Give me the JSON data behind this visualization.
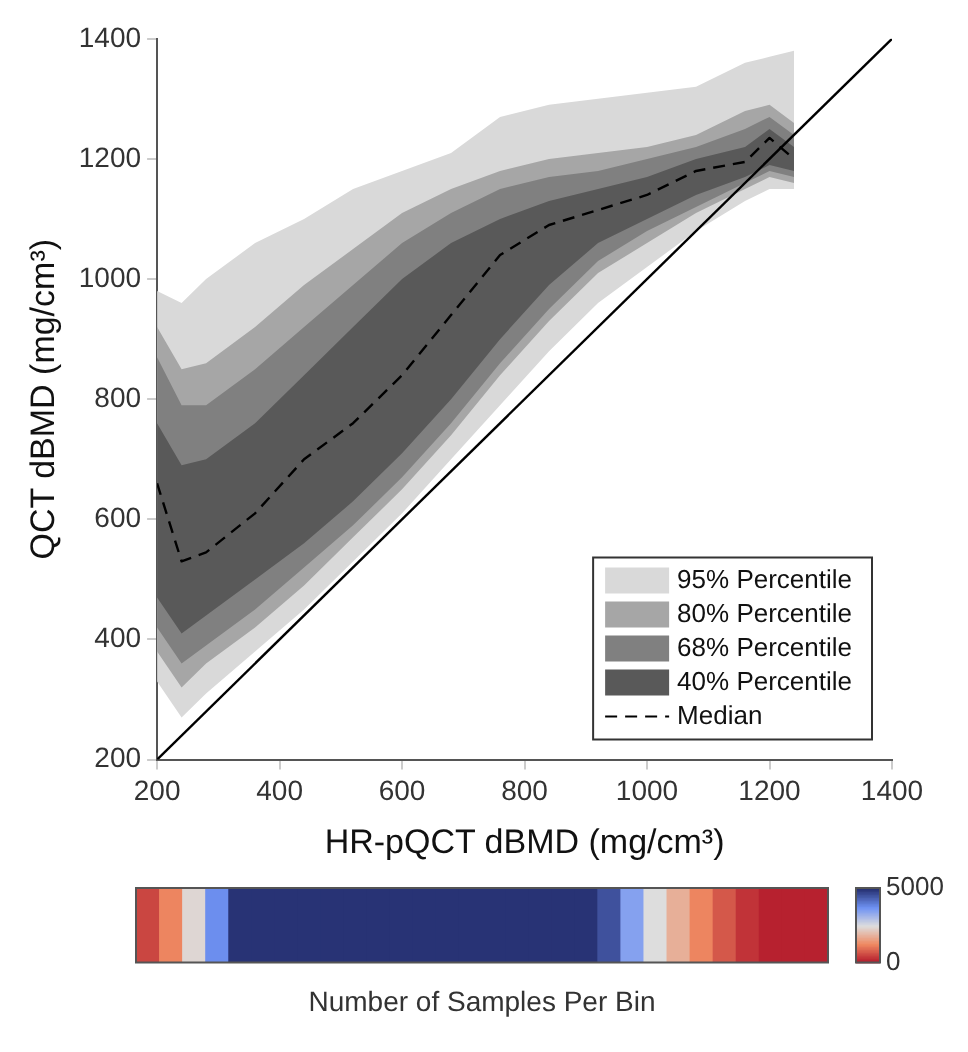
{
  "chart_data": [
    {
      "type": "area",
      "xlabel": "HR-pQCT dBMD (mg/cm³)",
      "ylabel": "QCT dBMD (mg/cm³)",
      "x": [
        200,
        240,
        280,
        360,
        440,
        520,
        600,
        680,
        760,
        840,
        920,
        1000,
        1080,
        1160,
        1200,
        1240
      ],
      "xlim": [
        200,
        1400
      ],
      "ylim": [
        200,
        1400
      ],
      "xticks": [
        200,
        400,
        600,
        800,
        1000,
        1200,
        1400
      ],
      "yticks": [
        200,
        400,
        600,
        800,
        1000,
        1200,
        1400
      ],
      "grid": false,
      "legend": "bottom right",
      "series": [
        {
          "name": "95% Percentile",
          "type": "line",
          "color": "#d9d9d9",
          "values": [
            null,
            null,
            null,
            null,
            null,
            null,
            null,
            null,
            null,
            null,
            null,
            null,
            null,
            null,
            null,
            null
          ],
          "lower": [
            330,
            270,
            310,
            380,
            450,
            530,
            610,
            700,
            790,
            880,
            960,
            1020,
            1080,
            1130,
            1150,
            1150
          ],
          "upper": [
            980,
            960,
            1000,
            1060,
            1100,
            1150,
            1180,
            1210,
            1270,
            1290,
            1300,
            1310,
            1320,
            1360,
            1370,
            1380
          ]
        },
        {
          "name": "80% Percentile",
          "type": "line",
          "color": "#a6a6a6",
          "values": [
            null,
            null,
            null,
            null,
            null,
            null,
            null,
            null,
            null,
            null,
            null,
            null,
            null,
            null,
            null,
            null
          ],
          "lower": [
            380,
            320,
            360,
            420,
            490,
            570,
            650,
            740,
            840,
            930,
            1010,
            1060,
            1110,
            1150,
            1170,
            1160
          ],
          "upper": [
            920,
            850,
            860,
            920,
            990,
            1050,
            1110,
            1150,
            1180,
            1200,
            1210,
            1220,
            1240,
            1280,
            1290,
            1260
          ]
        },
        {
          "name": "68% Percentile",
          "type": "line",
          "color": "#808080",
          "values": [
            null,
            null,
            null,
            null,
            null,
            null,
            null,
            null,
            null,
            null,
            null,
            null,
            null,
            null,
            null,
            null
          ],
          "lower": [
            420,
            360,
            390,
            450,
            520,
            590,
            670,
            760,
            860,
            950,
            1030,
            1080,
            1120,
            1160,
            1180,
            1170
          ],
          "upper": [
            870,
            790,
            790,
            850,
            920,
            990,
            1060,
            1110,
            1150,
            1170,
            1180,
            1200,
            1220,
            1250,
            1270,
            1240
          ]
        },
        {
          "name": "40% Percentile",
          "type": "line",
          "color": "#595959",
          "values": [
            null,
            null,
            null,
            null,
            null,
            null,
            null,
            null,
            null,
            null,
            null,
            null,
            null,
            null,
            null,
            null
          ],
          "lower": [
            470,
            410,
            440,
            500,
            560,
            630,
            710,
            800,
            900,
            990,
            1060,
            1100,
            1140,
            1170,
            1190,
            1180
          ],
          "upper": [
            760,
            690,
            700,
            760,
            840,
            920,
            1000,
            1060,
            1100,
            1130,
            1150,
            1170,
            1200,
            1220,
            1250,
            1220
          ]
        },
        {
          "name": "Median",
          "type": "line",
          "color": "#000000",
          "line_style": "dashed",
          "values": [
            660,
            530,
            545,
            610,
            700,
            760,
            840,
            940,
            1040,
            1090,
            1115,
            1140,
            1180,
            1195,
            1235,
            1200
          ]
        },
        {
          "type": "line",
          "color": "#000000",
          "x": [
            200,
            1400
          ],
          "values": [
            200,
            1400
          ]
        }
      ]
    },
    {
      "type": "heatmap",
      "clabel": "Number of Samples Per Bin",
      "categories": [
        null,
        null,
        null,
        null,
        null,
        null,
        null,
        null,
        null,
        null,
        null,
        null,
        null,
        null,
        null,
        null,
        null,
        null,
        null,
        null,
        null,
        null,
        null,
        null,
        null,
        null,
        null,
        null,
        null,
        null
      ],
      "y_categories": [
        null
      ],
      "cells": [
        [
          500,
          1200,
          2400,
          3800,
          5000,
          5000,
          5000,
          5000,
          5000,
          5000,
          5000,
          5000,
          5000,
          5000,
          5000,
          5000,
          5000,
          5000,
          5000,
          5000,
          4600,
          3500,
          2500,
          1800,
          1200,
          700,
          300,
          100,
          100,
          100
        ]
      ],
      "clim": [
        0,
        5000
      ],
      "cticks": [
        0,
        5000
      ]
    }
  ]
}
